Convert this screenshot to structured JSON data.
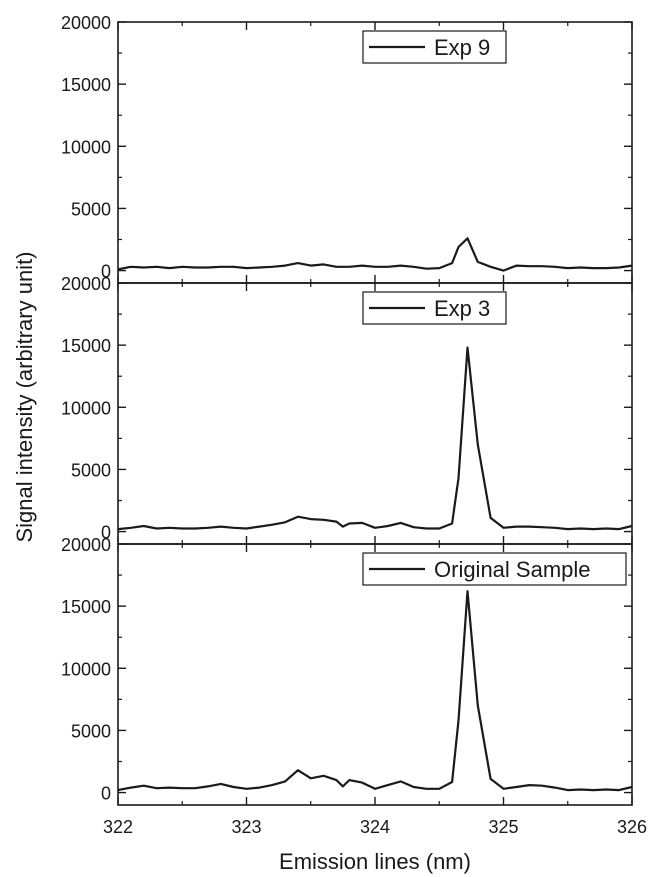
{
  "chart_data": {
    "type": "line",
    "xlabel": "Emission lines (nm)",
    "ylabel": "Signal intensity (arbitrary unit)",
    "xlim": [
      322,
      326
    ],
    "x_ticks": [
      "322",
      "323",
      "324",
      "325",
      "326"
    ],
    "ylim": [
      -1000,
      20000
    ],
    "y_ticks": [
      "0",
      "5000",
      "10000",
      "15000",
      "20000"
    ],
    "grid": false,
    "color": "#1a1a1a",
    "panels": [
      {
        "series": [
          {
            "name": "Exp 9",
            "x": [
              322.0,
              322.1,
              322.2,
              322.3,
              322.4,
              322.5,
              322.6,
              322.7,
              322.8,
              322.9,
              323.0,
              323.1,
              323.2,
              323.3,
              323.4,
              323.5,
              323.6,
              323.7,
              323.8,
              323.9,
              324.0,
              324.1,
              324.2,
              324.3,
              324.4,
              324.5,
              324.6,
              324.65,
              324.72,
              324.8,
              324.9,
              325.0,
              325.1,
              325.2,
              325.3,
              325.4,
              325.5,
              325.6,
              325.7,
              325.8,
              325.9,
              326.0
            ],
            "y": [
              100,
              300,
              250,
              300,
              200,
              300,
              250,
              250,
              300,
              300,
              200,
              250,
              300,
              400,
              600,
              400,
              500,
              300,
              300,
              400,
              300,
              300,
              400,
              300,
              150,
              200,
              600,
              1900,
              2600,
              700,
              300,
              0,
              400,
              350,
              350,
              300,
              200,
              250,
              200,
              200,
              250,
              400
            ]
          }
        ]
      },
      {
        "series": [
          {
            "name": "Exp 3",
            "x": [
              322.0,
              322.1,
              322.2,
              322.3,
              322.4,
              322.5,
              322.6,
              322.7,
              322.8,
              322.9,
              323.0,
              323.1,
              323.2,
              323.3,
              323.4,
              323.5,
              323.6,
              323.7,
              323.75,
              323.8,
              323.9,
              324.0,
              324.1,
              324.2,
              324.3,
              324.4,
              324.5,
              324.6,
              324.65,
              324.72,
              324.8,
              324.9,
              325.0,
              325.1,
              325.2,
              325.3,
              325.4,
              325.5,
              325.6,
              325.7,
              325.8,
              325.9,
              326.0
            ],
            "y": [
              200,
              300,
              450,
              250,
              300,
              250,
              250,
              300,
              400,
              300,
              250,
              400,
              550,
              750,
              1200,
              1000,
              950,
              800,
              400,
              650,
              700,
              300,
              450,
              700,
              350,
              250,
              250,
              650,
              4300,
              14800,
              7000,
              1100,
              300,
              400,
              400,
              350,
              300,
              200,
              250,
              200,
              250,
              200,
              450
            ]
          }
        ]
      },
      {
        "series": [
          {
            "name": "Original Sample",
            "x": [
              322.0,
              322.1,
              322.2,
              322.3,
              322.4,
              322.5,
              322.6,
              322.7,
              322.8,
              322.9,
              323.0,
              323.1,
              323.2,
              323.3,
              323.4,
              323.5,
              323.6,
              323.7,
              323.75,
              323.8,
              323.9,
              324.0,
              324.1,
              324.2,
              324.3,
              324.4,
              324.5,
              324.6,
              324.65,
              324.72,
              324.8,
              324.9,
              325.0,
              325.1,
              325.2,
              325.3,
              325.4,
              325.5,
              325.6,
              325.7,
              325.8,
              325.9,
              326.0
            ],
            "y": [
              200,
              400,
              550,
              350,
              400,
              350,
              350,
              500,
              700,
              450,
              300,
              400,
              600,
              900,
              1800,
              1150,
              1350,
              1000,
              500,
              1000,
              800,
              300,
              600,
              900,
              450,
              300,
              300,
              850,
              5800,
              16200,
              7000,
              1100,
              300,
              450,
              600,
              550,
              400,
              200,
              250,
              200,
              250,
              200,
              450
            ]
          }
        ]
      }
    ]
  }
}
